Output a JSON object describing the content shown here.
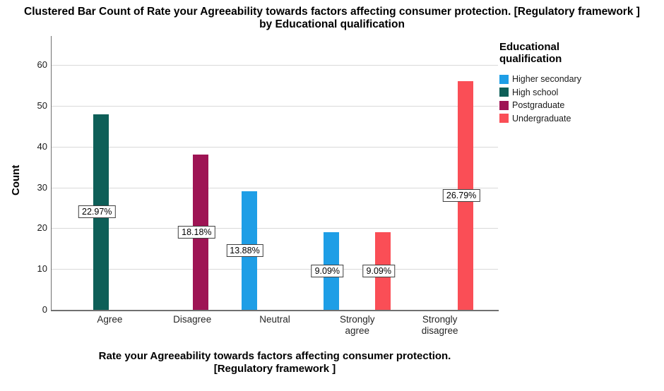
{
  "title": "Clustered Bar Count of Rate your Agreeability towards factors affecting consumer protection. [Regulatory framework ] by Educational qualification",
  "chart_data": {
    "type": "bar",
    "title": "Clustered Bar Count of Rate your Agreeability towards factors affecting consumer protection. [Regulatory framework ] by Educational qualification",
    "xlabel": "Rate your Agreeability towards factors affecting consumer protection. [Regulatory framework ]",
    "ylabel": "Count",
    "categories": [
      "Agree",
      "Disagree",
      "Neutral",
      "Strongly agree",
      "Strongly disagree"
    ],
    "yticks": [
      0,
      10,
      20,
      30,
      40,
      50,
      60
    ],
    "ylim": [
      0,
      65
    ],
    "grid": true,
    "legend": {
      "title": "Educational qualification",
      "position": "right"
    },
    "series": [
      {
        "name": "Higher secondary",
        "color": "#1E9EE6",
        "values": [
          null,
          null,
          29,
          19,
          null
        ],
        "percent_labels": [
          null,
          null,
          "13.88%",
          "9.09%",
          null
        ]
      },
      {
        "name": "High school",
        "color": "#0E5F58",
        "values": [
          48,
          null,
          null,
          null,
          null
        ],
        "percent_labels": [
          "22.97%",
          null,
          null,
          null,
          null
        ]
      },
      {
        "name": "Postgraduate",
        "color": "#9E1454",
        "values": [
          null,
          38,
          null,
          null,
          null
        ],
        "percent_labels": [
          null,
          "18.18%",
          null,
          null,
          null
        ]
      },
      {
        "name": "Undergraduate",
        "color": "#FA4E56",
        "values": [
          null,
          null,
          null,
          19,
          56
        ],
        "percent_labels": [
          null,
          null,
          null,
          "9.09%",
          "26.79%"
        ]
      }
    ]
  }
}
